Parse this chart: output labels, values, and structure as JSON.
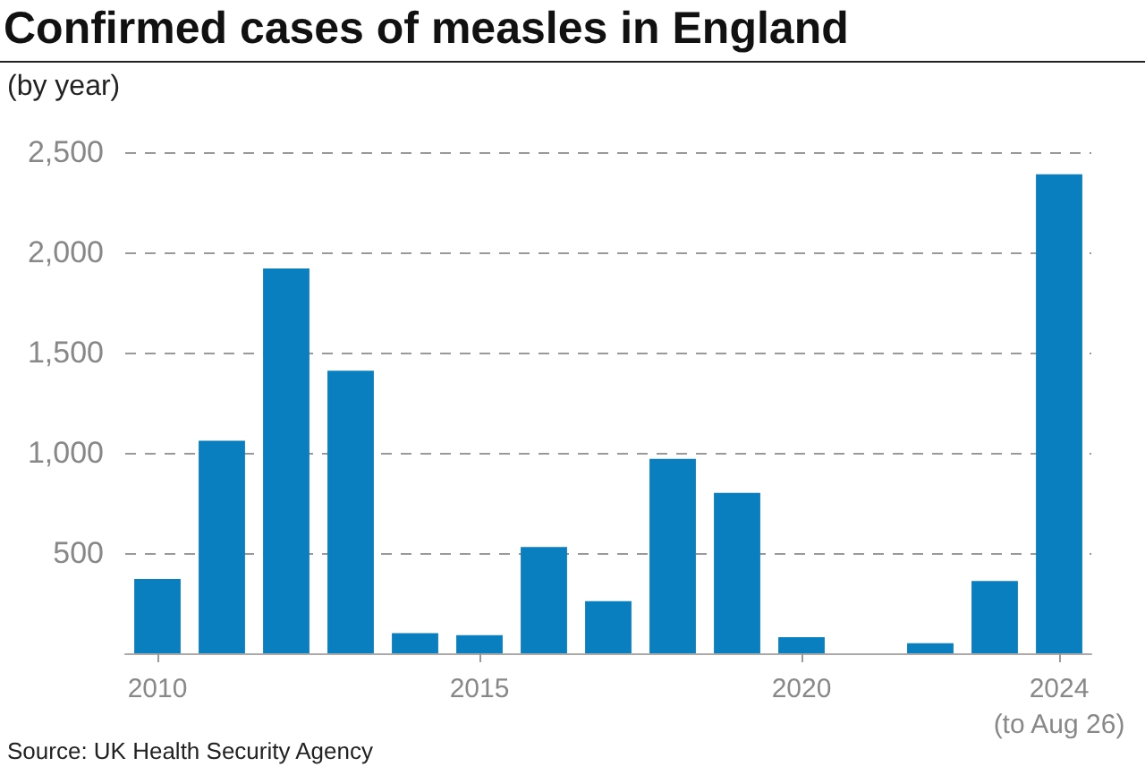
{
  "chart_data": {
    "type": "bar",
    "title": "Confirmed cases of measles in England",
    "ylabel": "(by year)",
    "categories": [
      "2010",
      null,
      null,
      null,
      null,
      "2015",
      null,
      null,
      null,
      null,
      "2020",
      null,
      null,
      null,
      "2024\n(to Aug 26)"
    ],
    "values": [
      370,
      1060,
      1920,
      1410,
      100,
      90,
      530,
      260,
      970,
      800,
      80,
      0,
      50,
      360,
      2390
    ],
    "color": "#0a7fbf",
    "ylim": [
      0,
      2500
    ],
    "yticks": [
      500,
      {
        "value": 1000,
        "label": "1,000"
      },
      {
        "value": 1500,
        "label": "1,500"
      },
      {
        "value": 2000,
        "label": "2,000"
      },
      {
        "value": 2500,
        "label": "2,500"
      }
    ],
    "grid": "y",
    "annotations": [
      "Source: UK Health Security Agency"
    ]
  }
}
